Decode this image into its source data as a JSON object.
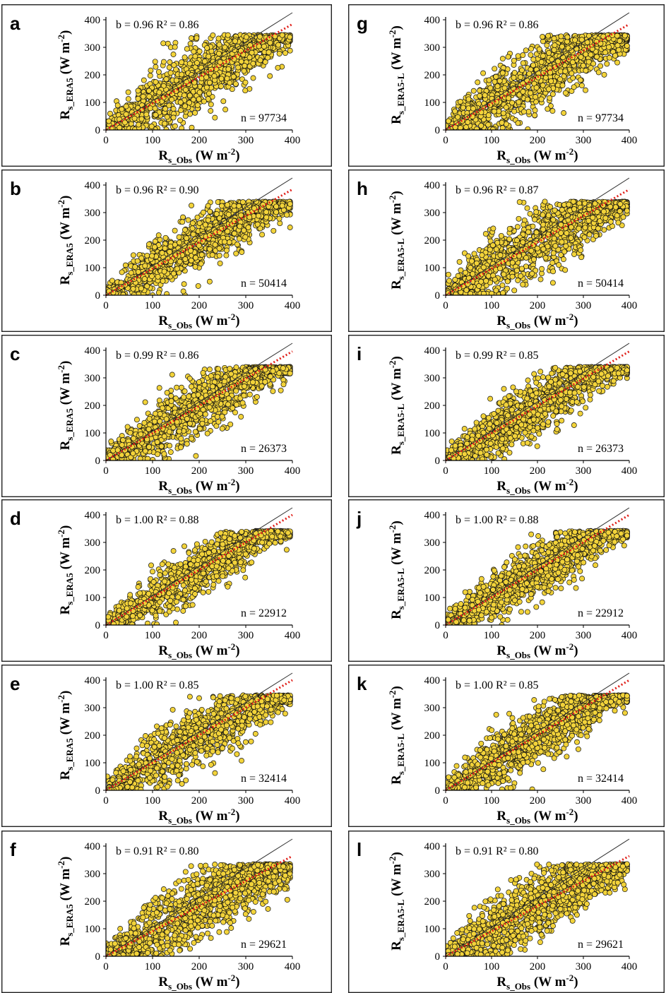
{
  "colors": {
    "point_fill": "#f2d33a",
    "point_edge": "#111111",
    "fit_line": "#e0201a",
    "identity_line": "#333333"
  },
  "chart_data": [
    {
      "type": "scatter",
      "panel": "a",
      "x_label": "R",
      "x_sub": "s_Obs",
      "x_unit": " (W m",
      "y_label": "R",
      "y_sub": "s_ERA5",
      "y_unit": " (W m",
      "unit_exp": "-2",
      "stats": "b = 0.96 R² = 0.86",
      "n_label": "n = 97734",
      "slope": 0.96,
      "r2": 0.86,
      "n": 97734,
      "xlim": [
        0,
        400
      ],
      "ylim": [
        0,
        400
      ],
      "ticks": [
        0,
        100,
        200,
        300,
        400
      ],
      "tick_labels": [
        "0",
        "100",
        "200",
        "300",
        "400"
      ],
      "saturation": 345,
      "spread": 62
    },
    {
      "type": "scatter",
      "panel": "b",
      "x_label": "R",
      "x_sub": "s_Obs",
      "x_unit": " (W m",
      "y_label": "R",
      "y_sub": "s_ERA5",
      "y_unit": " (W m",
      "unit_exp": "-2",
      "stats": "b = 0.96 R² = 0.90",
      "n_label": "n = 50414",
      "slope": 0.96,
      "r2": 0.9,
      "n": 50414,
      "xlim": [
        0,
        400
      ],
      "ylim": [
        0,
        400
      ],
      "ticks": [
        0,
        100,
        200,
        300,
        400
      ],
      "tick_labels": [
        "0",
        "100",
        "200",
        "300",
        "400"
      ],
      "saturation": 340,
      "spread": 50
    },
    {
      "type": "scatter",
      "panel": "c",
      "x_label": "R",
      "x_sub": "s_Obs",
      "x_unit": " (W m",
      "y_label": "R",
      "y_sub": "s_ERA5",
      "y_unit": " (W m",
      "unit_exp": "-2",
      "stats": "b = 0.99 R² = 0.86",
      "n_label": "n = 26373",
      "slope": 0.99,
      "r2": 0.86,
      "n": 26373,
      "xlim": [
        0,
        400
      ],
      "ylim": [
        0,
        400
      ],
      "ticks": [
        0,
        100,
        200,
        300,
        400
      ],
      "tick_labels": [
        "0",
        "100",
        "200",
        "300",
        "400"
      ],
      "saturation": 340,
      "spread": 52
    },
    {
      "type": "scatter",
      "panel": "d",
      "x_label": "R",
      "x_sub": "s_Obs",
      "x_unit": " (W m",
      "y_label": "R",
      "y_sub": "s_ERA5",
      "y_unit": " (W m",
      "unit_exp": "-2",
      "stats": "b = 1.00 R² = 0.88",
      "n_label": "n = 22912",
      "slope": 1.0,
      "r2": 0.88,
      "n": 22912,
      "xlim": [
        0,
        400
      ],
      "ylim": [
        0,
        400
      ],
      "ticks": [
        0,
        100,
        200,
        300,
        400
      ],
      "tick_labels": [
        "0",
        "100",
        "200",
        "300",
        "400"
      ],
      "saturation": 342,
      "spread": 48
    },
    {
      "type": "scatter",
      "panel": "e",
      "x_label": "R",
      "x_sub": "s_Obs",
      "x_unit": " (W m",
      "y_label": "R",
      "y_sub": "s_ERA5",
      "y_unit": " (W m",
      "unit_exp": "-2",
      "stats": "b = 1.00 R² = 0.85",
      "n_label": "n = 32414",
      "slope": 1.0,
      "r2": 0.85,
      "n": 32414,
      "xlim": [
        0,
        400
      ],
      "ylim": [
        0,
        400
      ],
      "ticks": [
        0,
        100,
        200,
        300,
        400
      ],
      "tick_labels": [
        "0",
        "100",
        "200",
        "300",
        "400"
      ],
      "saturation": 345,
      "spread": 55
    },
    {
      "type": "scatter",
      "panel": "f",
      "x_label": "R",
      "x_sub": "s_Obs",
      "x_unit": " (W m",
      "y_label": "R",
      "y_sub": "s_ERA5",
      "y_unit": " (W m",
      "unit_exp": "-2",
      "stats": "b = 0.91 R² = 0.80",
      "n_label": "n = 29621",
      "slope": 0.91,
      "r2": 0.8,
      "n": 29621,
      "xlim": [
        0,
        400
      ],
      "ylim": [
        0,
        400
      ],
      "ticks": [
        0,
        100,
        200,
        300,
        400
      ],
      "tick_labels": [
        "0",
        "100",
        "200",
        "300",
        "400"
      ],
      "saturation": 335,
      "spread": 62
    },
    {
      "type": "scatter",
      "panel": "g",
      "x_label": "R",
      "x_sub": "s_Obs",
      "x_unit": " (W m",
      "y_label": "R",
      "y_sub": "s_ERA5-L",
      "y_unit": " (W m",
      "unit_exp": "-2",
      "stats": "b = 0.96 R² = 0.86",
      "n_label": "n = 97734",
      "slope": 0.96,
      "r2": 0.86,
      "n": 97734,
      "xlim": [
        0,
        400
      ],
      "ylim": [
        0,
        400
      ],
      "ticks": [
        0,
        100,
        200,
        300,
        400
      ],
      "tick_labels": [
        "0",
        "100",
        "200",
        "300",
        "400"
      ],
      "saturation": 345,
      "spread": 62
    },
    {
      "type": "scatter",
      "panel": "h",
      "x_label": "R",
      "x_sub": "s_Obs",
      "x_unit": " (W m",
      "y_label": "R",
      "y_sub": "s_ERA5-L",
      "y_unit": " (W m",
      "unit_exp": "-2",
      "stats": "b = 0.96  R² = 0.87",
      "n_label": "n = 50414",
      "slope": 0.96,
      "r2": 0.87,
      "n": 50414,
      "xlim": [
        0,
        400
      ],
      "ylim": [
        0,
        400
      ],
      "ticks": [
        0,
        100,
        200,
        300,
        400
      ],
      "tick_labels": [
        "0",
        "100",
        "200",
        "300",
        "400"
      ],
      "saturation": 340,
      "spread": 65
    },
    {
      "type": "scatter",
      "panel": "i",
      "x_label": "R",
      "x_sub": "s_Obs",
      "x_unit": " (W m",
      "y_label": "R",
      "y_sub": "s_ERA5-L",
      "y_unit": " (W m",
      "unit_exp": "-2",
      "stats": "b = 0.99 R² = 0.85",
      "n_label": "n = 26373",
      "slope": 0.99,
      "r2": 0.85,
      "n": 26373,
      "xlim": [
        0,
        400
      ],
      "ylim": [
        0,
        400
      ],
      "ticks": [
        0,
        100,
        200,
        300,
        400
      ],
      "tick_labels": [
        "0",
        "100",
        "200",
        "300",
        "400"
      ],
      "saturation": 340,
      "spread": 53
    },
    {
      "type": "scatter",
      "panel": "j",
      "x_label": "R",
      "x_sub": "s_Obs",
      "x_unit": " (W m",
      "y_label": "R",
      "y_sub": "s_ERA5-L",
      "y_unit": " (W m",
      "unit_exp": "-2",
      "stats": "b = 1.00 R² = 0.88",
      "n_label": "n = 22912",
      "slope": 1.0,
      "r2": 0.88,
      "n": 22912,
      "xlim": [
        0,
        400
      ],
      "ylim": [
        0,
        400
      ],
      "ticks": [
        0,
        100,
        200,
        300,
        400
      ],
      "tick_labels": [
        "0",
        "100",
        "200",
        "300",
        "400"
      ],
      "saturation": 342,
      "spread": 48
    },
    {
      "type": "scatter",
      "panel": "k",
      "x_label": "R",
      "x_sub": "s_Obs",
      "x_unit": " (W m",
      "y_label": "R",
      "y_sub": "s_ERA5-L",
      "y_unit": " (W m",
      "unit_exp": "-2",
      "stats": "b = 1.00 R² = 0.85",
      "n_label": "n = 32414",
      "slope": 1.0,
      "r2": 0.85,
      "n": 32414,
      "xlim": [
        0,
        400
      ],
      "ylim": [
        0,
        400
      ],
      "ticks": [
        0,
        100,
        200,
        300,
        400
      ],
      "tick_labels": [
        "0",
        "100",
        "200",
        "300",
        "400"
      ],
      "saturation": 345,
      "spread": 55
    },
    {
      "type": "scatter",
      "panel": "l",
      "x_label": "R",
      "x_sub": "s_Obs",
      "x_unit": " (W m",
      "y_label": "R",
      "y_sub": "s_ERA5-L",
      "y_unit": " (W m",
      "unit_exp": "-2",
      "stats": "b = 0.91 R² = 0.80",
      "n_label": "n = 29621",
      "slope": 0.91,
      "r2": 0.8,
      "n": 29621,
      "xlim": [
        0,
        400
      ],
      "ylim": [
        0,
        400
      ],
      "ticks": [
        0,
        100,
        200,
        300,
        400
      ],
      "tick_labels": [
        "0",
        "100",
        "200",
        "300",
        "400"
      ],
      "saturation": 335,
      "spread": 62
    }
  ]
}
